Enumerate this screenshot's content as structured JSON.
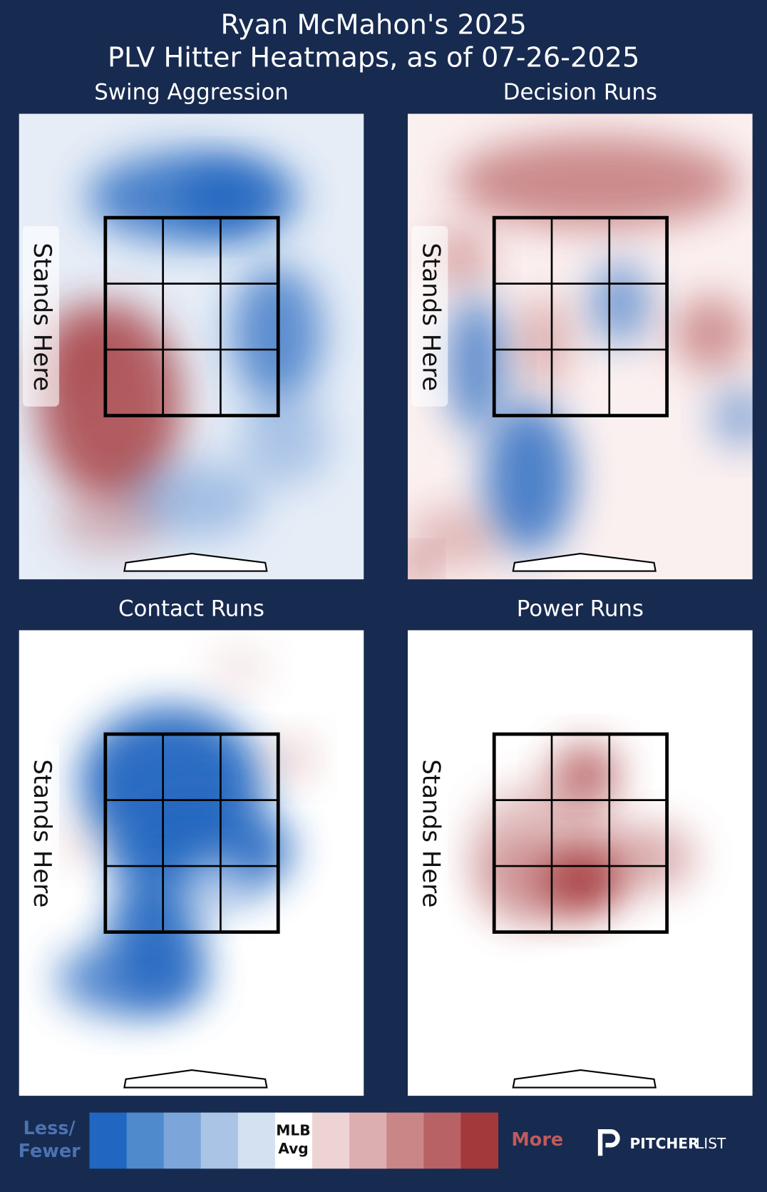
{
  "title": [
    "Ryan McMahon's 2025",
    "PLV Hitter Heatmaps, as of 07-26-2025"
  ],
  "panels": [
    {
      "title": "Swing Aggression",
      "batter_label": "Stands Here"
    },
    {
      "title": "Decision Runs",
      "batter_label": "Stands Here"
    },
    {
      "title": "Contact Runs",
      "batter_label": "Stands Here"
    },
    {
      "title": "Power Runs",
      "batter_label": "Stands Here"
    }
  ],
  "legend": {
    "less": [
      "Less/",
      "Fewer"
    ],
    "mid": [
      "MLB",
      "Avg"
    ],
    "more": "More"
  },
  "brand": [
    "PITCHER",
    "LIST"
  ]
}
